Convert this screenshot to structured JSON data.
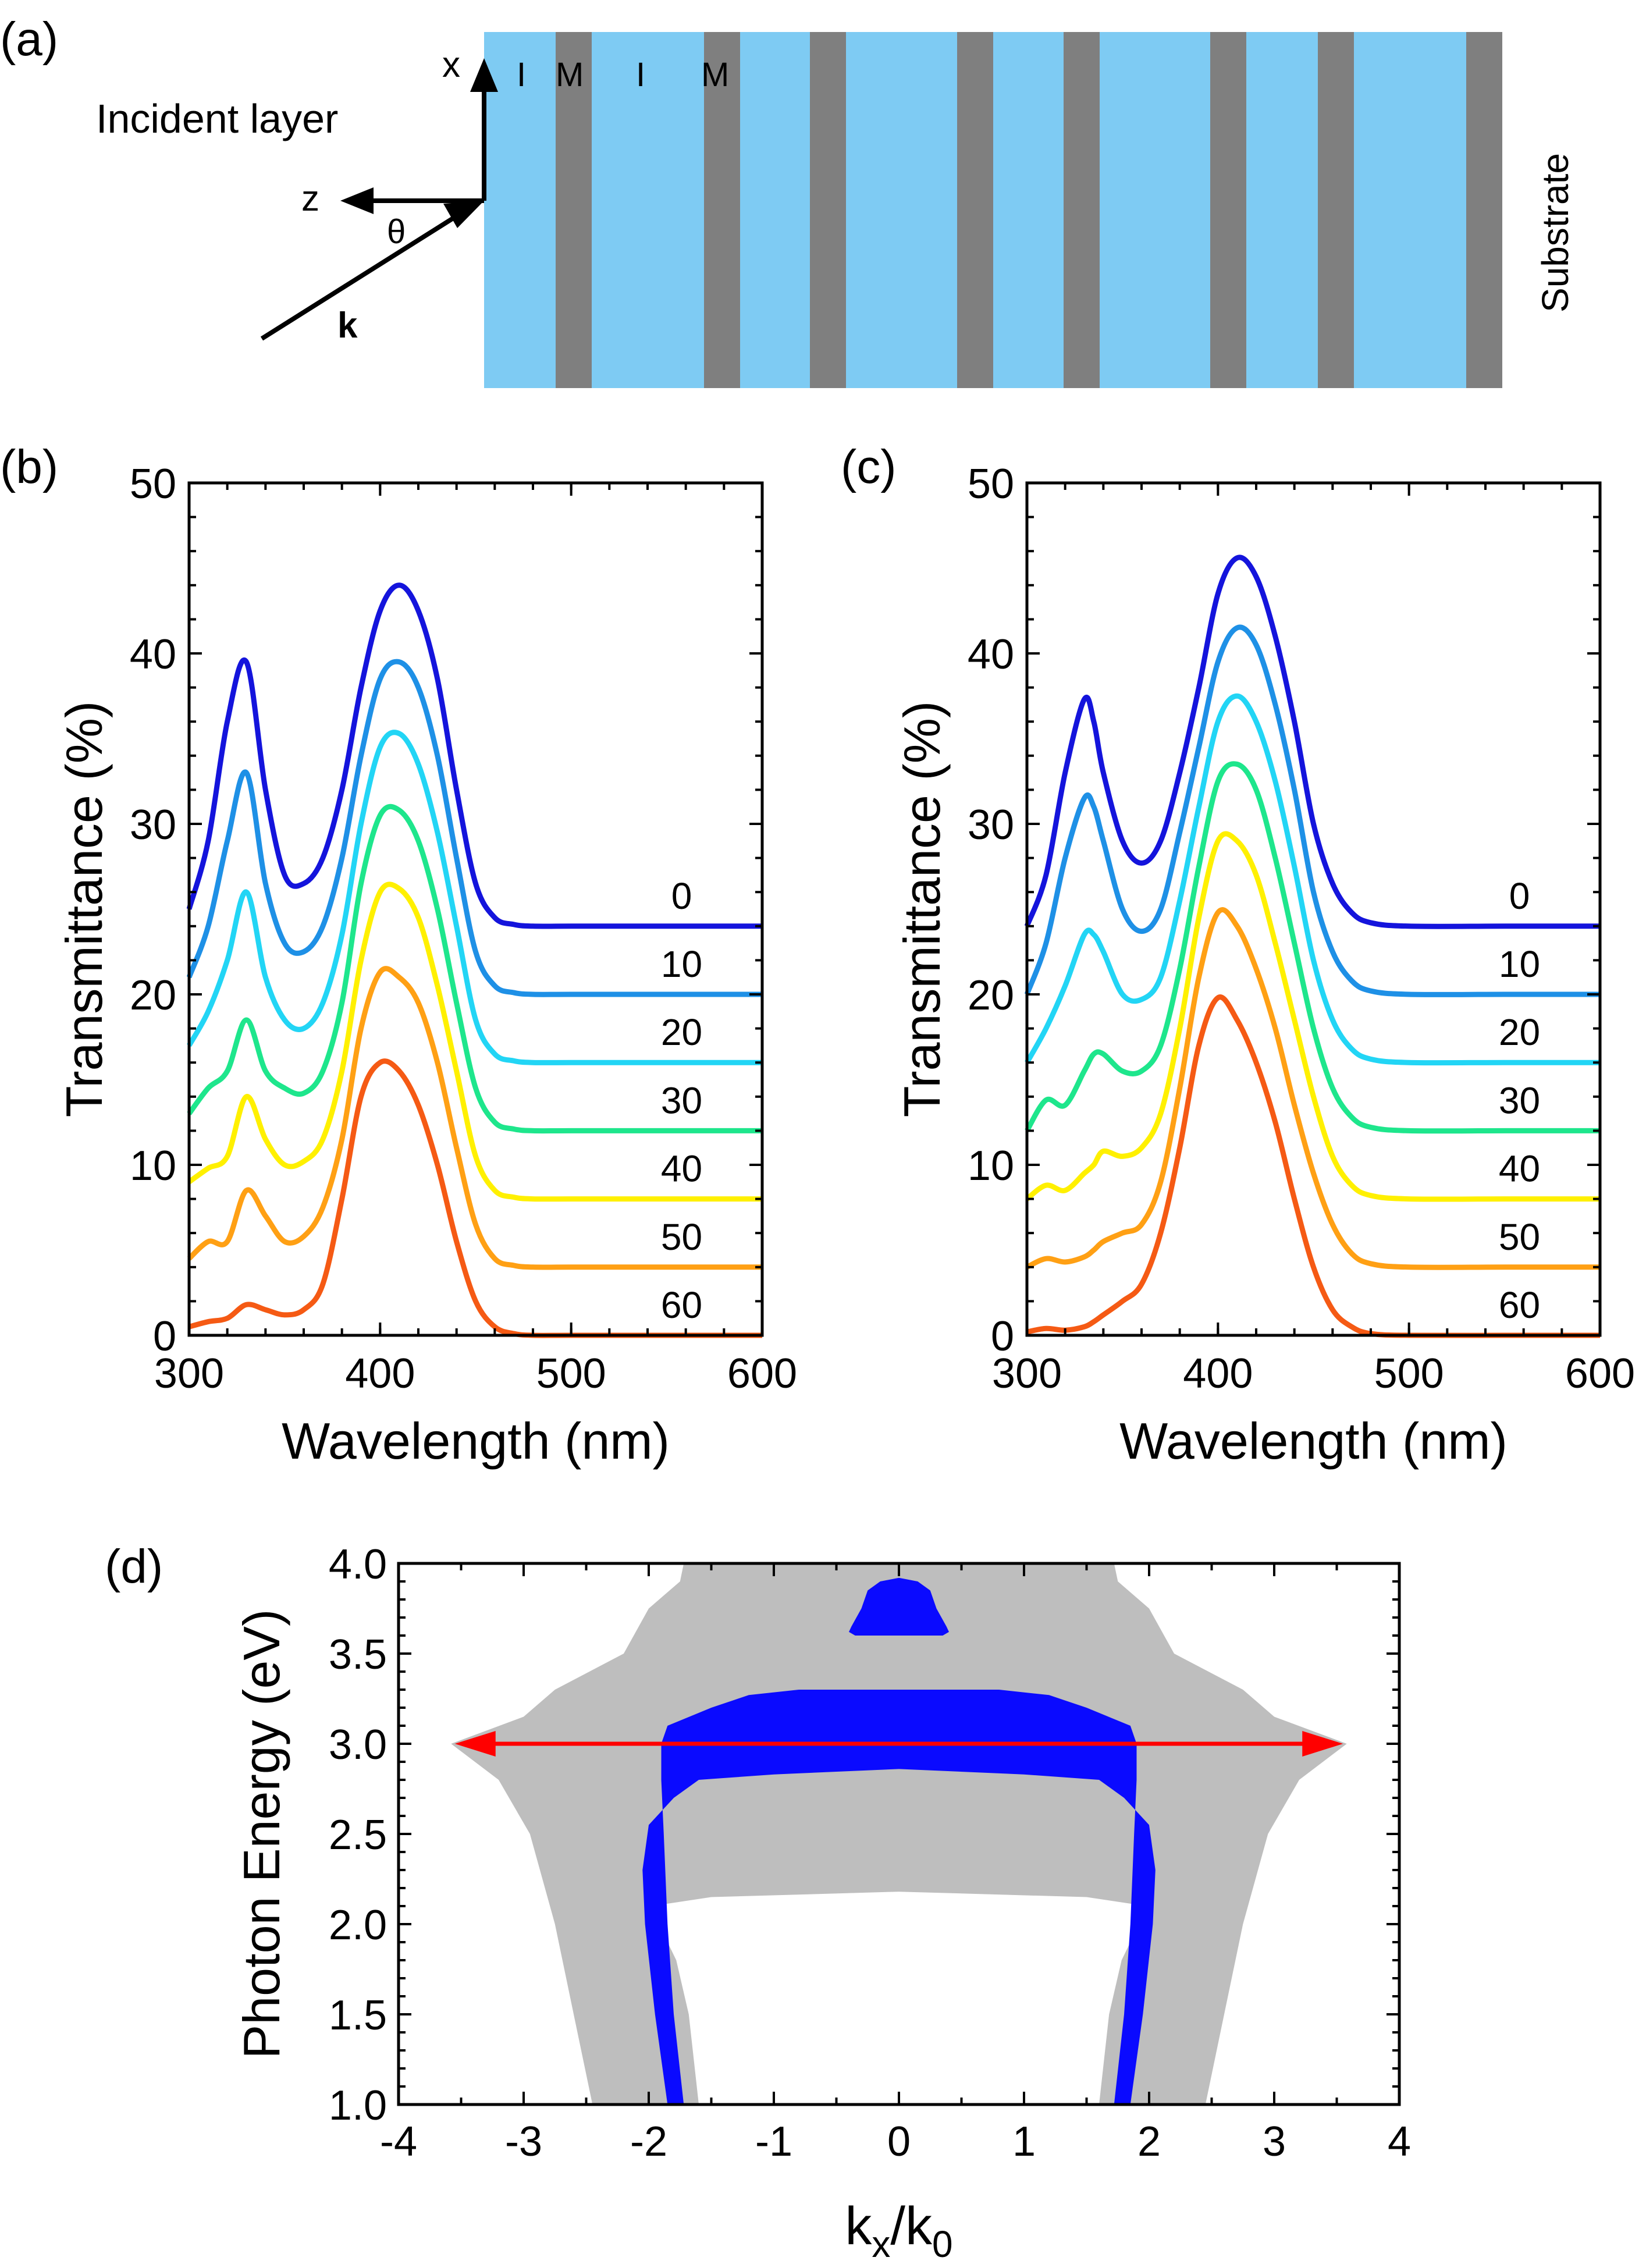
{
  "panel_labels": {
    "a": "(a)",
    "b": "(b)",
    "c": "(c)",
    "d": "(d)"
  },
  "diagram": {
    "incident_label": "Incident layer",
    "substrate_label": "Substrate",
    "x_label": "x",
    "z_label": "z",
    "theta_label": "θ",
    "k_label": "k",
    "layer_labels": [
      "I",
      "M",
      "I",
      "M"
    ],
    "dielectric_color": "#7ecbf3",
    "metal_color": "#7f7f7f"
  },
  "chart_data": [
    {
      "type": "line",
      "title": "(b)",
      "xlabel": "Wavelength (nm)",
      "ylabel": "Transmittance (%)",
      "xlim": [
        300,
        600
      ],
      "ylim": [
        0,
        50
      ],
      "xticks": [
        "300",
        "400",
        "500",
        "600"
      ],
      "yticks": [
        "0",
        "10",
        "20",
        "30",
        "40",
        "50"
      ],
      "legend_position": "right, label above each curve",
      "x": [
        300,
        310,
        320,
        330,
        340,
        350,
        360,
        370,
        380,
        390,
        400,
        410,
        420,
        430,
        440,
        450,
        460,
        470,
        480,
        500,
        550,
        600
      ],
      "series": [
        {
          "name": "0",
          "color": "#1414dc",
          "values": [
            25.0,
            29.0,
            36.0,
            39.5,
            32.0,
            27.0,
            26.5,
            28.0,
            32.0,
            38.0,
            42.5,
            44.0,
            42.5,
            38.5,
            32.0,
            26.5,
            24.5,
            24.1,
            24.0,
            24.0,
            24.0,
            24.0
          ]
        },
        {
          "name": "10",
          "color": "#1e90e6",
          "values": [
            21.0,
            24.0,
            29.0,
            33.0,
            26.5,
            23.0,
            22.5,
            24.0,
            28.0,
            34.0,
            38.5,
            39.5,
            38.0,
            34.0,
            28.0,
            22.5,
            20.5,
            20.1,
            20.0,
            20.0,
            20.0,
            20.0
          ]
        },
        {
          "name": "20",
          "color": "#22d5f5",
          "values": [
            17.0,
            19.0,
            22.0,
            26.0,
            21.0,
            18.5,
            18.0,
            19.5,
            23.5,
            30.0,
            34.5,
            35.3,
            33.5,
            29.5,
            24.0,
            18.5,
            16.5,
            16.1,
            16.0,
            16.0,
            16.0,
            16.0
          ]
        },
        {
          "name": "30",
          "color": "#1ee68c",
          "values": [
            13.0,
            14.5,
            15.5,
            18.5,
            15.5,
            14.5,
            14.2,
            15.5,
            19.5,
            26.5,
            30.5,
            30.8,
            29.0,
            25.0,
            19.5,
            14.5,
            12.5,
            12.1,
            12.0,
            12.0,
            12.0,
            12.0
          ]
        },
        {
          "name": "40",
          "color": "#fff000",
          "values": [
            9.0,
            9.8,
            10.5,
            14.0,
            11.5,
            10.0,
            10.2,
            11.5,
            15.5,
            22.0,
            26.0,
            26.2,
            24.5,
            20.5,
            15.5,
            10.5,
            8.5,
            8.1,
            8.0,
            8.0,
            8.0,
            8.0
          ]
        },
        {
          "name": "50",
          "color": "#ffa014",
          "values": [
            4.5,
            5.5,
            5.5,
            8.5,
            7.0,
            5.5,
            5.8,
            7.5,
            11.5,
            18.0,
            21.3,
            21.0,
            19.5,
            16.0,
            11.0,
            6.5,
            4.5,
            4.1,
            4.0,
            4.0,
            4.0,
            4.0
          ]
        },
        {
          "name": "60",
          "color": "#f55a14",
          "values": [
            0.5,
            0.8,
            1.0,
            1.8,
            1.5,
            1.2,
            1.5,
            3.0,
            8.0,
            14.0,
            16.0,
            15.5,
            13.5,
            10.0,
            5.5,
            2.0,
            0.5,
            0.1,
            0.0,
            0.0,
            0.0,
            0.0
          ]
        }
      ],
      "label_values": [
        "0",
        "10",
        "20",
        "30",
        "40",
        "50",
        "60"
      ]
    },
    {
      "type": "line",
      "title": "(c)",
      "xlabel": "Wavelength (nm)",
      "ylabel": "Transmittance (%)",
      "xlim": [
        300,
        600
      ],
      "ylim": [
        0,
        50
      ],
      "xticks": [
        "300",
        "400",
        "500",
        "600"
      ],
      "yticks": [
        "0",
        "10",
        "20",
        "30",
        "40",
        "50"
      ],
      "legend_position": "right, label above each curve",
      "x": [
        300,
        310,
        320,
        330,
        335,
        340,
        350,
        360,
        370,
        380,
        390,
        400,
        410,
        420,
        430,
        440,
        450,
        460,
        470,
        480,
        500,
        550,
        600
      ],
      "series": [
        {
          "name": "0",
          "color": "#1414dc",
          "values": [
            24.0,
            27.0,
            33.0,
            37.3,
            36.0,
            33.0,
            29.0,
            27.7,
            29.0,
            33.0,
            38.0,
            43.5,
            45.6,
            44.5,
            41.0,
            36.0,
            30.0,
            26.5,
            24.8,
            24.2,
            24.0,
            24.0,
            24.0
          ]
        },
        {
          "name": "10",
          "color": "#1e90e6",
          "values": [
            20.0,
            23.0,
            28.0,
            31.5,
            31.0,
            29.0,
            25.0,
            23.7,
            25.0,
            29.5,
            34.5,
            39.5,
            41.5,
            40.5,
            37.0,
            32.0,
            26.0,
            22.5,
            20.8,
            20.2,
            20.0,
            20.0,
            20.0
          ]
        },
        {
          "name": "20",
          "color": "#22d5f5",
          "values": [
            16.0,
            18.0,
            20.5,
            23.5,
            23.5,
            22.5,
            20.0,
            19.7,
            21.0,
            25.5,
            31.0,
            36.0,
            37.5,
            36.0,
            32.5,
            27.5,
            22.0,
            18.5,
            16.8,
            16.2,
            16.0,
            16.0,
            16.0
          ]
        },
        {
          "name": "30",
          "color": "#1ee68c",
          "values": [
            12.0,
            13.8,
            13.5,
            15.5,
            16.5,
            16.5,
            15.5,
            15.5,
            17.0,
            21.5,
            27.5,
            32.5,
            33.5,
            32.0,
            28.0,
            23.0,
            18.0,
            14.5,
            12.8,
            12.2,
            12.0,
            12.0,
            12.0
          ]
        },
        {
          "name": "40",
          "color": "#fff000",
          "values": [
            8.0,
            8.8,
            8.5,
            9.5,
            10.0,
            10.8,
            10.5,
            11.0,
            13.0,
            18.0,
            24.5,
            29.0,
            29.0,
            27.0,
            23.0,
            18.5,
            14.0,
            10.5,
            8.8,
            8.2,
            8.0,
            8.0,
            8.0
          ]
        },
        {
          "name": "50",
          "color": "#ffa014",
          "values": [
            4.0,
            4.5,
            4.3,
            4.6,
            5.0,
            5.5,
            6.0,
            6.5,
            9.0,
            14.5,
            21.0,
            24.8,
            24.0,
            21.5,
            18.0,
            13.5,
            9.5,
            6.5,
            4.8,
            4.2,
            4.0,
            4.0,
            4.0
          ]
        },
        {
          "name": "60",
          "color": "#f55a14",
          "values": [
            0.2,
            0.4,
            0.3,
            0.5,
            0.8,
            1.2,
            2.0,
            3.0,
            6.0,
            11.0,
            17.0,
            19.8,
            18.5,
            16.0,
            12.5,
            8.0,
            4.0,
            1.5,
            0.5,
            0.1,
            0.0,
            0.0,
            0.0
          ]
        }
      ],
      "label_values": [
        "0",
        "10",
        "20",
        "30",
        "40",
        "50",
        "60"
      ]
    },
    {
      "type": "area",
      "title": "(d)",
      "xlabel": "k",
      "xlabel_sub1": "x",
      "xlabel_mid": "/k",
      "xlabel_sub2": "0",
      "ylabel": "Photon Energy (eV)",
      "xlim": [
        -4,
        4
      ],
      "ylim": [
        1.0,
        4.0
      ],
      "xticks": [
        "-4",
        "-3",
        "-2",
        "-1",
        "0",
        "1",
        "2",
        "3",
        "4"
      ],
      "yticks": [
        "1.0",
        "1.5",
        "2.0",
        "2.5",
        "3.0",
        "3.5",
        "4.0"
      ],
      "gray_color": "#bebebe",
      "blue_color": "#0a0aff",
      "arrow_color": "#ff0000",
      "arrow": {
        "x_from": -3.55,
        "x_to": 3.55,
        "y": 3.0
      },
      "gray_outer_edge": [
        [
          1.0,
          2.45
        ],
        [
          1.5,
          2.6
        ],
        [
          2.0,
          2.75
        ],
        [
          2.5,
          2.95
        ],
        [
          2.8,
          3.2
        ],
        [
          3.0,
          3.58
        ],
        [
          3.15,
          3.0
        ],
        [
          3.3,
          2.75
        ],
        [
          3.5,
          2.2
        ],
        [
          3.75,
          2.0
        ],
        [
          3.9,
          1.75
        ],
        [
          4.0,
          1.72
        ]
      ],
      "gray_inner_hole": [
        [
          1.0,
          1.6
        ],
        [
          1.5,
          1.68
        ],
        [
          1.8,
          1.78
        ],
        [
          2.0,
          1.92
        ],
        [
          2.1,
          1.98
        ],
        [
          2.15,
          1.5
        ],
        [
          2.18,
          0.0
        ]
      ],
      "blue_band_outer": [
        [
          1.0,
          1.72
        ],
        [
          1.5,
          1.8
        ],
        [
          2.0,
          1.85
        ],
        [
          2.5,
          1.88
        ],
        [
          2.8,
          1.9
        ],
        [
          3.0,
          1.9
        ],
        [
          3.1,
          1.85
        ],
        [
          3.2,
          1.5
        ],
        [
          3.27,
          1.2
        ],
        [
          3.3,
          0.8
        ],
        [
          3.3,
          0.0
        ]
      ],
      "blue_band_inner": [
        [
          1.0,
          1.85
        ],
        [
          1.5,
          1.95
        ],
        [
          2.0,
          2.03
        ],
        [
          2.3,
          2.05
        ],
        [
          2.55,
          2.0
        ],
        [
          2.7,
          1.8
        ],
        [
          2.8,
          1.6
        ],
        [
          2.83,
          1.0
        ],
        [
          2.86,
          0.0
        ]
      ],
      "blue_top_blob": [
        [
          3.6,
          0.0
        ],
        [
          3.6,
          0.35
        ],
        [
          3.62,
          0.4
        ],
        [
          3.65,
          0.38
        ],
        [
          3.75,
          0.3
        ],
        [
          3.85,
          0.25
        ],
        [
          3.9,
          0.15
        ],
        [
          3.92,
          0.0
        ]
      ]
    }
  ]
}
